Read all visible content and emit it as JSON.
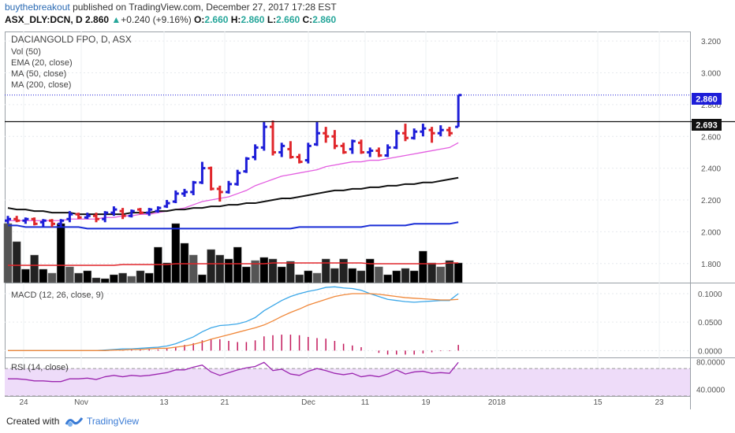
{
  "header": {
    "user": "buythebreakout",
    "published_text": "published on TradingView.com, December 27, 2017 17:28 EST",
    "symbol": "ASX_DLY:DCN, D",
    "price": "2.860",
    "change": "+0.240 (+9.16%)",
    "o_label": "O:",
    "o_value": "2.660",
    "h_label": "H:",
    "h_value": "2.860",
    "l_label": "L:",
    "l_value": "2.660",
    "c_label": "C:",
    "c_value": "2.860"
  },
  "legend": {
    "title": "DACIANGOLD FPO, D, ASX",
    "vol": "Vol (50)",
    "ema": "EMA (20, close)",
    "ma50": "MA (50, close)",
    "ma200": "MA (200, close)",
    "macd": "MACD (12, 26, close, 9)",
    "rsi": "RSI (14, close)"
  },
  "badges": {
    "last_price": "2.860",
    "resistance": "2.693"
  },
  "footer": {
    "created": "Created with",
    "brand": "TradingView"
  },
  "colors": {
    "up": "#1d1dd8",
    "down": "#e0262b",
    "ema": "#e35de0",
    "ma50": "#111111",
    "ma200": "#1a2dd6",
    "vol_ma": "#e0262b",
    "macd": "#3ba7e8",
    "signal": "#f0883a",
    "hist": "#c2185b",
    "rsi": "#9c27b0",
    "rsi_band": "#eedcf9"
  },
  "chart_data": [
    {
      "type": "candlestick",
      "title": "DACIANGOLD FPO, D, ASX",
      "yticks": [
        "3.200",
        "3.000",
        "2.800",
        "2.600",
        "2.400",
        "2.200",
        "2.000",
        "1.800"
      ],
      "ylim": [
        1.68,
        3.26
      ],
      "xticks": [
        "24",
        "Nov",
        "13",
        "21",
        "Dec",
        "11",
        "19",
        "2018",
        "15",
        "23"
      ],
      "resistance": 2.693,
      "last": 2.86,
      "bars": [
        {
          "o": 2.07,
          "h": 2.1,
          "l": 2.05,
          "c": 2.08
        },
        {
          "o": 2.08,
          "h": 2.1,
          "l": 2.06,
          "c": 2.07
        },
        {
          "o": 2.07,
          "h": 2.09,
          "l": 2.05,
          "c": 2.08
        },
        {
          "o": 2.08,
          "h": 2.09,
          "l": 2.04,
          "c": 2.05
        },
        {
          "o": 2.06,
          "h": 2.08,
          "l": 2.03,
          "c": 2.07
        },
        {
          "o": 2.07,
          "h": 2.08,
          "l": 2.03,
          "c": 2.05
        },
        {
          "o": 2.05,
          "h": 2.08,
          "l": 2.03,
          "c": 2.07
        },
        {
          "o": 2.08,
          "h": 2.13,
          "l": 2.06,
          "c": 2.11
        },
        {
          "o": 2.11,
          "h": 2.12,
          "l": 2.08,
          "c": 2.09
        },
        {
          "o": 2.09,
          "h": 2.12,
          "l": 2.08,
          "c": 2.1
        },
        {
          "o": 2.1,
          "h": 2.12,
          "l": 2.06,
          "c": 2.08
        },
        {
          "o": 2.08,
          "h": 2.13,
          "l": 2.06,
          "c": 2.12
        },
        {
          "o": 2.12,
          "h": 2.16,
          "l": 2.1,
          "c": 2.14
        },
        {
          "o": 2.13,
          "h": 2.15,
          "l": 2.08,
          "c": 2.1
        },
        {
          "o": 2.1,
          "h": 2.14,
          "l": 2.09,
          "c": 2.13
        },
        {
          "o": 2.14,
          "h": 2.15,
          "l": 2.11,
          "c": 2.12
        },
        {
          "o": 2.12,
          "h": 2.15,
          "l": 2.1,
          "c": 2.14
        },
        {
          "o": 2.13,
          "h": 2.16,
          "l": 2.12,
          "c": 2.15
        },
        {
          "o": 2.16,
          "h": 2.2,
          "l": 2.15,
          "c": 2.18
        },
        {
          "o": 2.19,
          "h": 2.26,
          "l": 2.18,
          "c": 2.24
        },
        {
          "o": 2.24,
          "h": 2.27,
          "l": 2.22,
          "c": 2.25
        },
        {
          "o": 2.25,
          "h": 2.32,
          "l": 2.23,
          "c": 2.31
        },
        {
          "o": 2.31,
          "h": 2.44,
          "l": 2.3,
          "c": 2.4
        },
        {
          "o": 2.4,
          "h": 2.41,
          "l": 2.26,
          "c": 2.27
        },
        {
          "o": 2.27,
          "h": 2.29,
          "l": 2.19,
          "c": 2.25
        },
        {
          "o": 2.25,
          "h": 2.32,
          "l": 2.24,
          "c": 2.3
        },
        {
          "o": 2.3,
          "h": 2.39,
          "l": 2.29,
          "c": 2.37
        },
        {
          "o": 2.38,
          "h": 2.47,
          "l": 2.37,
          "c": 2.46
        },
        {
          "o": 2.47,
          "h": 2.55,
          "l": 2.45,
          "c": 2.53
        },
        {
          "o": 2.53,
          "h": 2.69,
          "l": 2.51,
          "c": 2.66
        },
        {
          "o": 2.66,
          "h": 2.7,
          "l": 2.48,
          "c": 2.5
        },
        {
          "o": 2.5,
          "h": 2.56,
          "l": 2.47,
          "c": 2.54
        },
        {
          "o": 2.52,
          "h": 2.57,
          "l": 2.46,
          "c": 2.47
        },
        {
          "o": 2.47,
          "h": 2.49,
          "l": 2.43,
          "c": 2.44
        },
        {
          "o": 2.45,
          "h": 2.56,
          "l": 2.43,
          "c": 2.54
        },
        {
          "o": 2.55,
          "h": 2.69,
          "l": 2.54,
          "c": 2.62
        },
        {
          "o": 2.62,
          "h": 2.66,
          "l": 2.56,
          "c": 2.6
        },
        {
          "o": 2.6,
          "h": 2.64,
          "l": 2.52,
          "c": 2.54
        },
        {
          "o": 2.54,
          "h": 2.56,
          "l": 2.49,
          "c": 2.5
        },
        {
          "o": 2.52,
          "h": 2.58,
          "l": 2.49,
          "c": 2.57
        },
        {
          "o": 2.56,
          "h": 2.58,
          "l": 2.49,
          "c": 2.5
        },
        {
          "o": 2.5,
          "h": 2.53,
          "l": 2.47,
          "c": 2.51
        },
        {
          "o": 2.51,
          "h": 2.53,
          "l": 2.47,
          "c": 2.48
        },
        {
          "o": 2.48,
          "h": 2.55,
          "l": 2.47,
          "c": 2.53
        },
        {
          "o": 2.53,
          "h": 2.64,
          "l": 2.52,
          "c": 2.62
        },
        {
          "o": 2.62,
          "h": 2.68,
          "l": 2.57,
          "c": 2.59
        },
        {
          "o": 2.59,
          "h": 2.65,
          "l": 2.58,
          "c": 2.63
        },
        {
          "o": 2.63,
          "h": 2.68,
          "l": 2.6,
          "c": 2.65
        },
        {
          "o": 2.64,
          "h": 2.66,
          "l": 2.56,
          "c": 2.62
        },
        {
          "o": 2.62,
          "h": 2.67,
          "l": 2.6,
          "c": 2.64
        },
        {
          "o": 2.64,
          "h": 2.66,
          "l": 2.6,
          "c": 2.62
        },
        {
          "o": 2.66,
          "h": 2.86,
          "l": 2.66,
          "c": 2.86
        }
      ],
      "ema20": [
        2.07,
        2.07,
        2.07,
        2.07,
        2.07,
        2.07,
        2.07,
        2.08,
        2.08,
        2.08,
        2.08,
        2.09,
        2.09,
        2.1,
        2.1,
        2.11,
        2.11,
        2.12,
        2.13,
        2.14,
        2.15,
        2.17,
        2.19,
        2.2,
        2.21,
        2.22,
        2.24,
        2.26,
        2.29,
        2.31,
        2.33,
        2.35,
        2.36,
        2.37,
        2.38,
        2.39,
        2.41,
        2.42,
        2.43,
        2.44,
        2.44,
        2.45,
        2.45,
        2.46,
        2.47,
        2.48,
        2.49,
        2.5,
        2.51,
        2.52,
        2.53,
        2.56
      ],
      "ma50": [
        2.15,
        2.14,
        2.14,
        2.13,
        2.13,
        2.12,
        2.12,
        2.12,
        2.11,
        2.11,
        2.11,
        2.11,
        2.11,
        2.11,
        2.12,
        2.12,
        2.12,
        2.13,
        2.13,
        2.14,
        2.14,
        2.15,
        2.15,
        2.16,
        2.16,
        2.17,
        2.17,
        2.18,
        2.18,
        2.19,
        2.2,
        2.21,
        2.21,
        2.22,
        2.23,
        2.24,
        2.25,
        2.26,
        2.26,
        2.27,
        2.27,
        2.28,
        2.28,
        2.29,
        2.29,
        2.3,
        2.3,
        2.31,
        2.31,
        2.32,
        2.33,
        2.34
      ],
      "ma200": [
        2.04,
        2.04,
        2.03,
        2.03,
        2.03,
        2.03,
        2.03,
        2.03,
        2.03,
        2.02,
        2.02,
        2.02,
        2.02,
        2.02,
        2.02,
        2.02,
        2.02,
        2.02,
        2.02,
        2.02,
        2.02,
        2.02,
        2.02,
        2.02,
        2.02,
        2.02,
        2.02,
        2.02,
        2.02,
        2.02,
        2.02,
        2.02,
        2.02,
        2.03,
        2.03,
        2.03,
        2.03,
        2.03,
        2.03,
        2.03,
        2.03,
        2.04,
        2.04,
        2.04,
        2.04,
        2.04,
        2.05,
        2.05,
        2.05,
        2.05,
        2.05,
        2.06
      ],
      "volume": [
        0.75,
        0.52,
        0.17,
        0.35,
        0.17,
        0.12,
        0.75,
        0.2,
        0.12,
        0.15,
        0.06,
        0.05,
        0.1,
        0.12,
        0.08,
        0.15,
        0.12,
        0.45,
        0.25,
        0.75,
        0.5,
        0.35,
        0.1,
        0.42,
        0.35,
        0.3,
        0.45,
        0.2,
        0.28,
        0.32,
        0.3,
        0.2,
        0.27,
        0.1,
        0.15,
        0.12,
        0.3,
        0.18,
        0.3,
        0.18,
        0.15,
        0.3,
        0.2,
        0.1,
        0.15,
        0.18,
        0.15,
        0.4,
        0.25,
        0.2,
        0.28,
        0.25
      ],
      "volume_ma": [
        0.22,
        0.22,
        0.22,
        0.22,
        0.22,
        0.22,
        0.22,
        0.22,
        0.22,
        0.22,
        0.22,
        0.22,
        0.22,
        0.23,
        0.23,
        0.23,
        0.23,
        0.23,
        0.23,
        0.24,
        0.24,
        0.24,
        0.24,
        0.24,
        0.24,
        0.24,
        0.24,
        0.24,
        0.24,
        0.24,
        0.25,
        0.25,
        0.25,
        0.25,
        0.25,
        0.25,
        0.25,
        0.25,
        0.25,
        0.25,
        0.25,
        0.24,
        0.24,
        0.24,
        0.24,
        0.24,
        0.24,
        0.24,
        0.24,
        0.24,
        0.25,
        0.25
      ]
    },
    {
      "type": "line",
      "title": "MACD (12, 26, close, 9)",
      "yticks": [
        "0.1000",
        "0.0500",
        "0.0000"
      ],
      "ylim": [
        -0.012,
        0.118
      ],
      "macd": [
        0.0,
        0.0,
        0.0,
        0.0,
        0.0,
        0.0,
        0.0,
        0.0,
        0.0,
        0.0,
        0.0,
        0.001,
        0.002,
        0.003,
        0.003,
        0.004,
        0.005,
        0.006,
        0.008,
        0.012,
        0.018,
        0.024,
        0.033,
        0.04,
        0.044,
        0.045,
        0.047,
        0.051,
        0.058,
        0.07,
        0.079,
        0.088,
        0.095,
        0.1,
        0.104,
        0.107,
        0.111,
        0.112,
        0.11,
        0.109,
        0.106,
        0.1,
        0.095,
        0.09,
        0.088,
        0.086,
        0.085,
        0.086,
        0.087,
        0.088,
        0.088,
        0.1
      ],
      "signal": [
        0.0,
        0.0,
        0.0,
        0.0,
        0.0,
        0.0,
        0.0,
        0.0,
        0.0,
        0.0,
        0.0,
        0.0,
        0.001,
        0.001,
        0.002,
        0.002,
        0.003,
        0.004,
        0.004,
        0.006,
        0.008,
        0.011,
        0.015,
        0.02,
        0.024,
        0.028,
        0.032,
        0.036,
        0.04,
        0.045,
        0.052,
        0.06,
        0.067,
        0.073,
        0.08,
        0.085,
        0.09,
        0.095,
        0.098,
        0.1,
        0.1,
        0.1,
        0.099,
        0.097,
        0.095,
        0.093,
        0.092,
        0.091,
        0.09,
        0.089,
        0.089,
        0.09
      ],
      "hist": [
        0.0,
        0.0,
        0.0,
        0.0,
        0.0,
        0.0,
        0.0,
        0.0,
        0.0,
        0.0,
        0.0,
        0.001,
        0.001,
        0.002,
        0.001,
        0.002,
        0.002,
        0.002,
        0.004,
        0.006,
        0.01,
        0.013,
        0.018,
        0.02,
        0.02,
        0.017,
        0.015,
        0.015,
        0.018,
        0.025,
        0.027,
        0.028,
        0.028,
        0.027,
        0.024,
        0.022,
        0.021,
        0.017,
        0.012,
        0.009,
        0.006,
        0.0,
        -0.004,
        -0.007,
        -0.007,
        -0.007,
        -0.007,
        -0.005,
        -0.003,
        -0.001,
        -0.001,
        0.01
      ]
    },
    {
      "type": "line",
      "title": "RSI (14, close)",
      "yticks": [
        "80.0000",
        "40.0000"
      ],
      "ylim": [
        30,
        85
      ],
      "band": [
        30,
        70
      ],
      "rsi": [
        55,
        55,
        54,
        52,
        52,
        51,
        51,
        55,
        55,
        56,
        54,
        58,
        60,
        58,
        60,
        59,
        60,
        62,
        64,
        68,
        68,
        72,
        75,
        65,
        60,
        64,
        68,
        71,
        73,
        79,
        67,
        69,
        62,
        60,
        66,
        70,
        67,
        63,
        61,
        63,
        58,
        60,
        58,
        62,
        68,
        62,
        65,
        66,
        63,
        64,
        63,
        79
      ]
    }
  ]
}
